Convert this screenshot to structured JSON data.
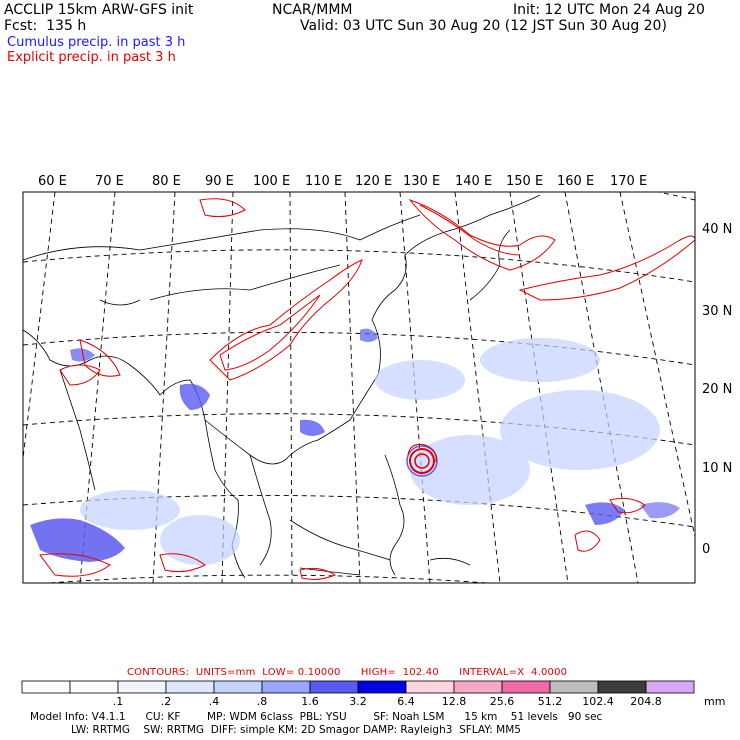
{
  "header": {
    "title": "ACCLIP 15km ARW-GFS init",
    "center": "NCAR/MMM",
    "init": "Init: 12 UTC Mon 24 Aug 20",
    "fcst": "Fcst:  135 h",
    "valid": "Valid: 03 UTC Sun 30 Aug 20 (12 JST Sun 30 Aug 20)",
    "cumulus_label": "Cumulus precip. in past 3 h",
    "explicit_label": "Explicit precip. in past 3 h",
    "cumulus_color": "#1a1aff",
    "explicit_color": "#e00000"
  },
  "map": {
    "lon_labels": [
      "60 E",
      "70 E",
      "80 E",
      "90 E",
      "100 E",
      "110 E",
      "120 E",
      "130 E",
      "140 E",
      "150 E",
      "160 E",
      "170 E"
    ],
    "lat_labels": [
      "40 N",
      "30 N",
      "20 N",
      "10 N",
      "0"
    ]
  },
  "contours": {
    "text": "CONTOURS:  UNITS=mm  LOW= 0.10000      HIGH=  102.40      INTERVAL=X  4.0000"
  },
  "colorbar": {
    "ticks": [
      ".1",
      ".2",
      ".4",
      ".8",
      "1.6",
      "3.2",
      "6.4",
      "12.8",
      "25.6",
      "51.2",
      "102.4",
      "204.8"
    ],
    "unit": "mm",
    "colors": [
      "#ffffff",
      "#ffffff",
      "#f0f4ff",
      "#dfe6ff",
      "#c6d2ff",
      "#9aa6ff",
      "#5a5af0",
      "#0000e6",
      "#ffd6e0",
      "#f7a8c6",
      "#f06aa8",
      "#bdbdbd",
      "#3c3c3c",
      "#d7a8f5"
    ]
  },
  "footer": {
    "line1": "Model Info: V4.1.1      CU: KF        MP: WDM 6class  PBL: YSU        SF: Noah LSM      15 km    51 levels   90 sec",
    "line2": "LW: RRTMG    SW: RRTMG  DIFF: simple KM: 2D Smagor DAMP: Rayleigh3  SFLAY: MM5"
  }
}
